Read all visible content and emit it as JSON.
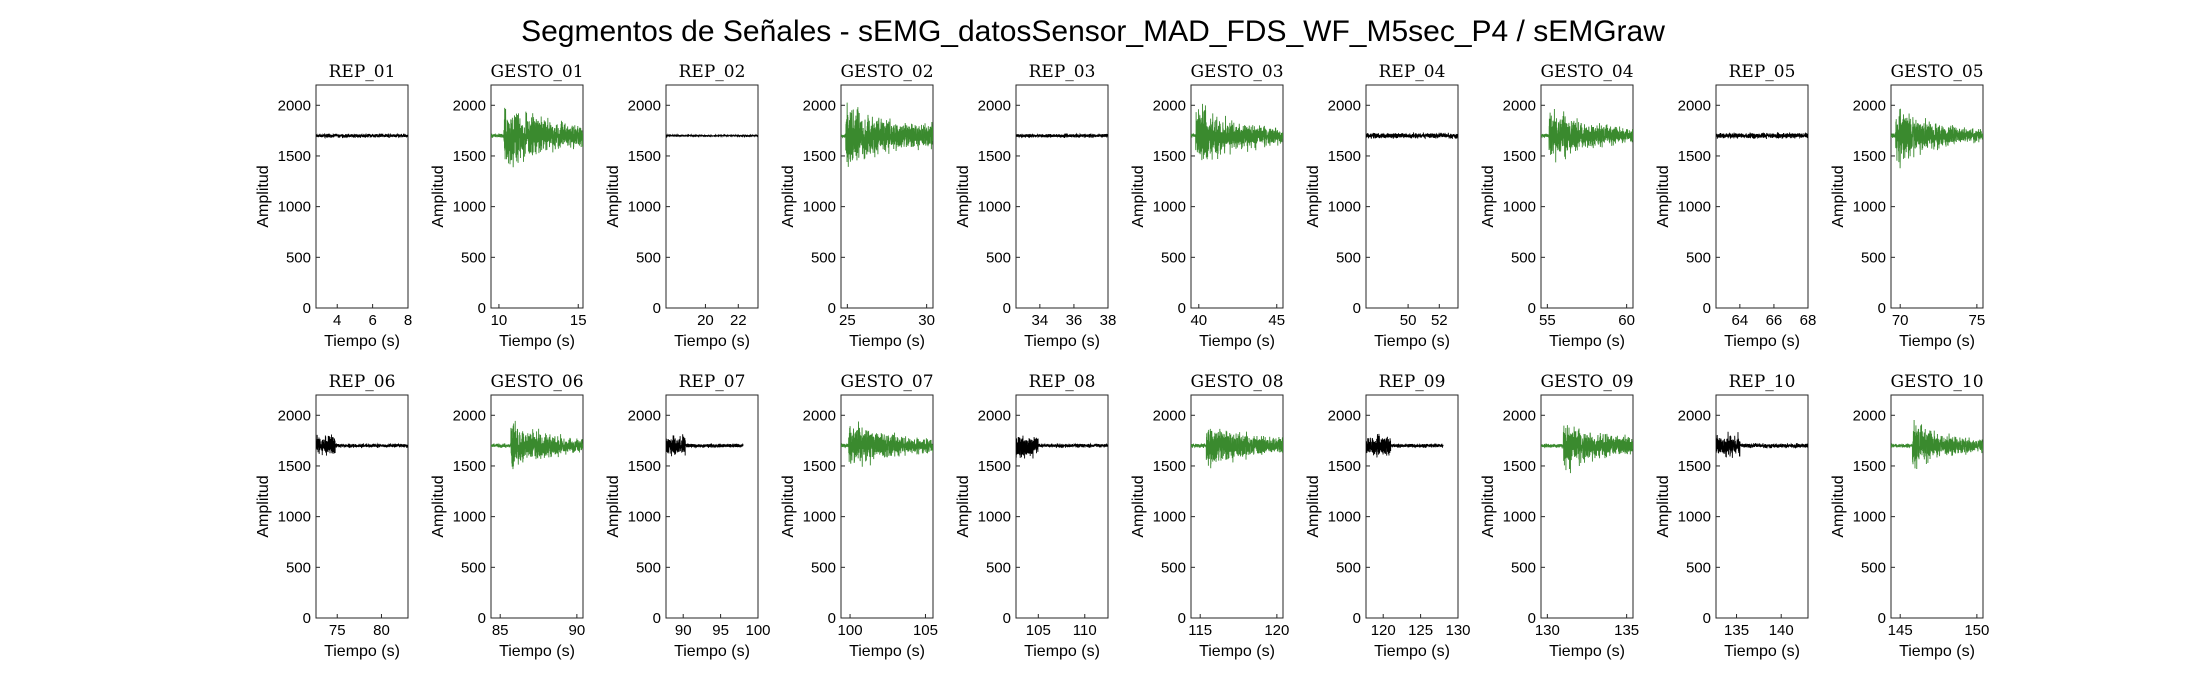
{
  "title": "Segmentos de Señales - sEMG_datosSensor_MAD_FDS_WF_M5sec_P4 / sEMGraw",
  "colors": {
    "rep": "#000000",
    "gesto": "#3a8a2e"
  },
  "chart_data": [
    {
      "type": "line",
      "title": "REP_01",
      "kind": "rep",
      "xlim": [
        2.8,
        8
      ],
      "xticks": [
        4,
        6,
        8
      ],
      "ylim": [
        0,
        2200
      ],
      "yticks": [
        0,
        500,
        1000,
        1500,
        2000
      ],
      "xlabel": "Tiempo (s)",
      "ylabel": "Amplitud",
      "series": [
        {
          "name": "REP_01",
          "baseline": 1700,
          "amp_start": 25,
          "amp_end": 25
        }
      ]
    },
    {
      "type": "line",
      "title": "GESTO_01",
      "kind": "gesto",
      "xlim": [
        9.5,
        15.3
      ],
      "xticks": [
        10,
        15
      ],
      "ylim": [
        0,
        2200
      ],
      "yticks": [
        0,
        500,
        1000,
        1500,
        2000
      ],
      "xlabel": "Tiempo (s)",
      "ylabel": "Amplitud",
      "series": [
        {
          "name": "GESTO_01",
          "baseline": 1700,
          "onset": 10.3,
          "amp_start": 450,
          "amp_end": 180,
          "min": 1150,
          "max": 2130
        }
      ]
    },
    {
      "type": "line",
      "title": "REP_02",
      "kind": "rep",
      "xlim": [
        17.6,
        23.2
      ],
      "xticks": [
        20,
        22
      ],
      "ylim": [
        0,
        2200
      ],
      "yticks": [
        0,
        500,
        1000,
        1500,
        2000
      ],
      "xlabel": "Tiempo (s)",
      "ylabel": "Amplitud",
      "series": [
        {
          "name": "REP_02",
          "baseline": 1700,
          "amp_start": 12,
          "amp_end": 12
        }
      ]
    },
    {
      "type": "line",
      "title": "GESTO_02",
      "kind": "gesto",
      "xlim": [
        24.6,
        30.4
      ],
      "xticks": [
        25,
        30
      ],
      "ylim": [
        0,
        2200
      ],
      "yticks": [
        0,
        500,
        1000,
        1500,
        2000
      ],
      "xlabel": "Tiempo (s)",
      "ylabel": "Amplitud",
      "series": [
        {
          "name": "GESTO_02",
          "baseline": 1700,
          "onset": 24.9,
          "amp_start": 420,
          "amp_end": 200,
          "min": 1100,
          "max": 2150
        }
      ]
    },
    {
      "type": "line",
      "title": "REP_03",
      "kind": "rep",
      "xlim": [
        32.6,
        38
      ],
      "xticks": [
        34,
        36,
        38
      ],
      "ylim": [
        0,
        2200
      ],
      "yticks": [
        0,
        500,
        1000,
        1500,
        2000
      ],
      "xlabel": "Tiempo (s)",
      "ylabel": "Amplitud",
      "series": [
        {
          "name": "REP_03",
          "baseline": 1700,
          "amp_start": 25,
          "amp_end": 25
        }
      ]
    },
    {
      "type": "line",
      "title": "GESTO_03",
      "kind": "gesto",
      "xlim": [
        39.5,
        45.4
      ],
      "xticks": [
        40,
        45
      ],
      "ylim": [
        0,
        2200
      ],
      "yticks": [
        0,
        500,
        1000,
        1500,
        2000
      ],
      "xlabel": "Tiempo (s)",
      "ylabel": "Amplitud",
      "series": [
        {
          "name": "GESTO_03",
          "baseline": 1700,
          "onset": 39.8,
          "amp_start": 420,
          "amp_end": 120,
          "min": 1280,
          "max": 2150
        }
      ]
    },
    {
      "type": "line",
      "title": "REP_04",
      "kind": "rep",
      "xlim": [
        47.3,
        53.2
      ],
      "xticks": [
        50,
        52
      ],
      "ylim": [
        0,
        2200
      ],
      "yticks": [
        0,
        500,
        1000,
        1500,
        2000
      ],
      "xlabel": "Tiempo (s)",
      "ylabel": "Amplitud",
      "series": [
        {
          "name": "REP_04",
          "baseline": 1700,
          "amp_start": 35,
          "amp_end": 35
        }
      ]
    },
    {
      "type": "line",
      "title": "GESTO_04",
      "kind": "gesto",
      "xlim": [
        54.6,
        60.4
      ],
      "xticks": [
        55,
        60
      ],
      "ylim": [
        0,
        2200
      ],
      "yticks": [
        0,
        500,
        1000,
        1500,
        2000
      ],
      "xlabel": "Tiempo (s)",
      "ylabel": "Amplitud",
      "series": [
        {
          "name": "GESTO_04",
          "baseline": 1700,
          "onset": 55.1,
          "amp_start": 380,
          "amp_end": 110,
          "min": 1150,
          "max": 2080
        }
      ]
    },
    {
      "type": "line",
      "title": "REP_05",
      "kind": "rep",
      "xlim": [
        62.6,
        68
      ],
      "xticks": [
        64,
        66,
        68
      ],
      "ylim": [
        0,
        2200
      ],
      "yticks": [
        0,
        500,
        1000,
        1500,
        2000
      ],
      "xlabel": "Tiempo (s)",
      "ylabel": "Amplitud",
      "series": [
        {
          "name": "REP_05",
          "baseline": 1700,
          "amp_start": 35,
          "amp_end": 35
        }
      ]
    },
    {
      "type": "line",
      "title": "GESTO_05",
      "kind": "gesto",
      "xlim": [
        69.4,
        75.4
      ],
      "xticks": [
        70,
        75
      ],
      "ylim": [
        0,
        2200
      ],
      "yticks": [
        0,
        500,
        1000,
        1500,
        2000
      ],
      "xlabel": "Tiempo (s)",
      "ylabel": "Amplitud",
      "series": [
        {
          "name": "GESTO_05",
          "baseline": 1700,
          "onset": 69.7,
          "amp_start": 420,
          "amp_end": 70,
          "min": 1230,
          "max": 2120
        }
      ]
    },
    {
      "type": "line",
      "title": "REP_06",
      "kind": "rep",
      "xlim": [
        72.6,
        83
      ],
      "xticks": [
        75,
        80
      ],
      "ylim": [
        0,
        2200
      ],
      "yticks": [
        0,
        500,
        1000,
        1500,
        2000
      ],
      "xlabel": "Tiempo (s)",
      "ylabel": "Amplitud",
      "series": [
        {
          "name": "REP_06",
          "baseline": 1700,
          "burst_end": 74.8,
          "burst_amp": 130,
          "amp_start": 25,
          "amp_end": 25
        }
      ]
    },
    {
      "type": "line",
      "title": "GESTO_06",
      "kind": "gesto",
      "xlim": [
        84.4,
        90.4
      ],
      "xticks": [
        85,
        90
      ],
      "ylim": [
        0,
        2200
      ],
      "yticks": [
        0,
        500,
        1000,
        1500,
        2000
      ],
      "xlabel": "Tiempo (s)",
      "ylabel": "Amplitud",
      "series": [
        {
          "name": "GESTO_06",
          "baseline": 1700,
          "onset": 85.7,
          "amp_start": 330,
          "amp_end": 110,
          "min": 1130,
          "max": 2050
        }
      ]
    },
    {
      "type": "line",
      "title": "REP_07",
      "kind": "rep",
      "xlim": [
        87.7,
        100
      ],
      "xticks": [
        90,
        95,
        100
      ],
      "ylim": [
        0,
        2200
      ],
      "yticks": [
        0,
        500,
        1000,
        1500,
        2000
      ],
      "xlabel": "Tiempo (s)",
      "ylabel": "Amplitud",
      "series": [
        {
          "name": "REP_07",
          "baseline": 1700,
          "burst_end": 90.3,
          "burst_amp": 130,
          "amp_start": 25,
          "amp_end": 25,
          "data_end": 98
        }
      ]
    },
    {
      "type": "line",
      "title": "GESTO_07",
      "kind": "gesto",
      "xlim": [
        99.4,
        105.5
      ],
      "xticks": [
        100,
        105
      ],
      "ylim": [
        0,
        2200
      ],
      "yticks": [
        0,
        500,
        1000,
        1500,
        2000
      ],
      "xlabel": "Tiempo (s)",
      "ylabel": "Amplitud",
      "series": [
        {
          "name": "GESTO_07",
          "baseline": 1700,
          "onset": 99.9,
          "amp_start": 330,
          "amp_end": 110,
          "min": 1350,
          "max": 2080
        }
      ]
    },
    {
      "type": "line",
      "title": "REP_08",
      "kind": "rep",
      "xlim": [
        102.6,
        112.5
      ],
      "xticks": [
        105,
        110
      ],
      "ylim": [
        0,
        2200
      ],
      "yticks": [
        0,
        500,
        1000,
        1500,
        2000
      ],
      "xlabel": "Tiempo (s)",
      "ylabel": "Amplitud",
      "series": [
        {
          "name": "REP_08",
          "baseline": 1700,
          "burst_end": 105,
          "burst_amp": 150,
          "amp_start": 25,
          "amp_end": 25
        }
      ]
    },
    {
      "type": "line",
      "title": "GESTO_08",
      "kind": "gesto",
      "xlim": [
        114.4,
        120.4
      ],
      "xticks": [
        115,
        120
      ],
      "ylim": [
        0,
        2200
      ],
      "yticks": [
        0,
        500,
        1000,
        1500,
        2000
      ],
      "xlabel": "Tiempo (s)",
      "ylabel": "Amplitud",
      "series": [
        {
          "name": "GESTO_08",
          "baseline": 1700,
          "onset": 115.4,
          "amp_start": 330,
          "amp_end": 130,
          "min": 1300,
          "max": 2130
        }
      ]
    },
    {
      "type": "line",
      "title": "REP_09",
      "kind": "rep",
      "xlim": [
        117.7,
        130
      ],
      "xticks": [
        120,
        125,
        130
      ],
      "ylim": [
        0,
        2200
      ],
      "yticks": [
        0,
        500,
        1000,
        1500,
        2000
      ],
      "xlabel": "Tiempo (s)",
      "ylabel": "Amplitud",
      "series": [
        {
          "name": "REP_09",
          "baseline": 1700,
          "burst_end": 121,
          "burst_amp": 130,
          "amp_start": 25,
          "amp_end": 25,
          "data_end": 128
        }
      ]
    },
    {
      "type": "line",
      "title": "GESTO_09",
      "kind": "gesto",
      "xlim": [
        129.6,
        135.4
      ],
      "xticks": [
        130,
        135
      ],
      "ylim": [
        0,
        2200
      ],
      "yticks": [
        0,
        500,
        1000,
        1500,
        2000
      ],
      "xlabel": "Tiempo (s)",
      "ylabel": "Amplitud",
      "series": [
        {
          "name": "GESTO_09",
          "baseline": 1700,
          "onset": 131,
          "amp_start": 330,
          "amp_end": 150,
          "min": 1320,
          "max": 2080
        }
      ]
    },
    {
      "type": "line",
      "title": "REP_10",
      "kind": "rep",
      "xlim": [
        132.7,
        143
      ],
      "xticks": [
        135,
        140
      ],
      "ylim": [
        0,
        2200
      ],
      "yticks": [
        0,
        500,
        1000,
        1500,
        2000
      ],
      "xlabel": "Tiempo (s)",
      "ylabel": "Amplitud",
      "series": [
        {
          "name": "REP_10",
          "baseline": 1700,
          "burst_end": 135.4,
          "burst_amp": 150,
          "amp_start": 30,
          "amp_end": 30
        }
      ]
    },
    {
      "type": "line",
      "title": "GESTO_10",
      "kind": "gesto",
      "xlim": [
        144.4,
        150.4
      ],
      "xticks": [
        145,
        150
      ],
      "ylim": [
        0,
        2200
      ],
      "yticks": [
        0,
        500,
        1000,
        1500,
        2000
      ],
      "xlabel": "Tiempo (s)",
      "ylabel": "Amplitud",
      "series": [
        {
          "name": "GESTO_10",
          "baseline": 1700,
          "onset": 145.8,
          "amp_start": 320,
          "amp_end": 90,
          "min": 1330,
          "max": 2060
        }
      ]
    }
  ]
}
